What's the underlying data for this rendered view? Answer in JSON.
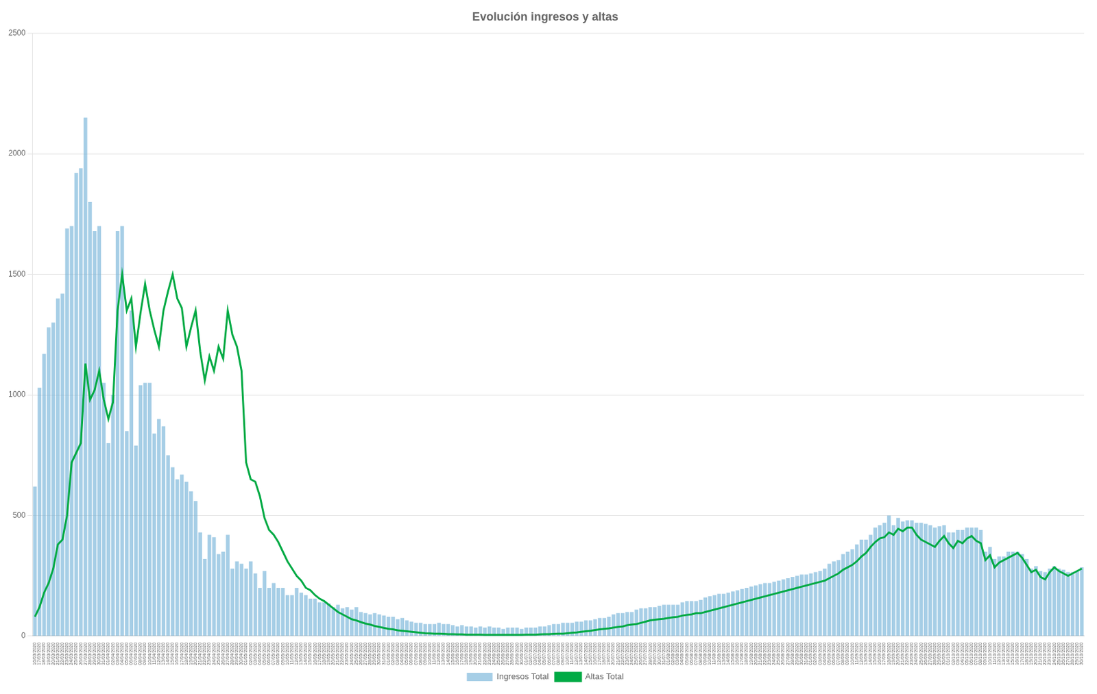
{
  "chart_data": {
    "type": "bar",
    "title": "Evolución ingresos y altas",
    "categories": [
      "16/03/2020",
      "17/03/2020",
      "18/03/2020",
      "19/03/2020",
      "20/03/2020",
      "21/03/2020",
      "22/03/2020",
      "23/03/2020",
      "24/03/2020",
      "25/03/2020",
      "26/03/2020",
      "27/03/2020",
      "28/03/2020",
      "29/03/2020",
      "30/03/2020",
      "31/03/2020",
      "01/04/2020",
      "02/04/2020",
      "03/04/2020",
      "04/04/2020",
      "05/04/2020",
      "06/04/2020",
      "07/04/2020",
      "08/04/2020",
      "09/04/2020",
      "10/04/2020",
      "11/04/2020",
      "12/04/2020",
      "13/04/2020",
      "14/04/2020",
      "15/04/2020",
      "16/04/2020",
      "17/04/2020",
      "18/04/2020",
      "19/04/2020",
      "20/04/2020",
      "21/04/2020",
      "22/04/2020",
      "23/04/2020",
      "24/04/2020",
      "25/04/2020",
      "26/04/2020",
      "27/04/2020",
      "28/04/2020",
      "29/04/2020",
      "30/04/2020",
      "01/05/2020",
      "02/05/2020",
      "03/05/2020",
      "04/05/2020",
      "05/05/2020",
      "06/05/2020",
      "07/05/2020",
      "08/05/2020",
      "09/05/2020",
      "10/05/2020",
      "11/05/2020",
      "12/05/2020",
      "13/05/2020",
      "14/05/2020",
      "15/05/2020",
      "16/05/2020",
      "17/05/2020",
      "18/05/2020",
      "19/05/2020",
      "20/05/2020",
      "21/05/2020",
      "22/05/2020",
      "23/05/2020",
      "24/05/2020",
      "25/05/2020",
      "26/05/2020",
      "27/05/2020",
      "28/05/2020",
      "29/05/2020",
      "30/05/2020",
      "31/05/2020",
      "01/06/2020",
      "02/06/2020",
      "03/06/2020",
      "04/06/2020",
      "05/06/2020",
      "06/06/2020",
      "07/06/2020",
      "08/06/2020",
      "09/06/2020",
      "10/06/2020",
      "11/06/2020",
      "12/06/2020",
      "13/06/2020",
      "14/06/2020",
      "15/06/2020",
      "16/06/2020",
      "17/06/2020",
      "18/06/2020",
      "19/06/2020",
      "20/06/2020",
      "21/06/2020",
      "22/06/2020",
      "23/06/2020",
      "24/06/2020",
      "25/06/2020",
      "26/06/2020",
      "27/06/2020",
      "28/06/2020",
      "29/06/2020",
      "30/06/2020",
      "01/07/2020",
      "02/07/2020",
      "03/07/2020",
      "04/07/2020",
      "05/07/2020",
      "06/07/2020",
      "07/07/2020",
      "08/07/2020",
      "09/07/2020",
      "10/07/2020",
      "11/07/2020",
      "12/07/2020",
      "13/07/2020",
      "14/07/2020",
      "15/07/2020",
      "16/07/2020",
      "17/07/2020",
      "18/07/2020",
      "19/07/2020",
      "20/07/2020",
      "21/07/2020",
      "22/07/2020",
      "23/07/2020",
      "24/07/2020",
      "25/07/2020",
      "26/07/2020",
      "27/07/2020",
      "28/07/2020",
      "29/07/2020",
      "30/07/2020",
      "31/07/2020",
      "01/08/2020",
      "02/08/2020",
      "03/08/2020",
      "04/08/2020",
      "05/08/2020",
      "06/08/2020",
      "07/08/2020",
      "08/08/2020",
      "09/08/2020",
      "10/08/2020",
      "11/08/2020",
      "12/08/2020",
      "13/08/2020",
      "14/08/2020",
      "15/08/2020",
      "16/08/2020",
      "17/08/2020",
      "18/08/2020",
      "19/08/2020",
      "20/08/2020",
      "21/08/2020",
      "22/08/2020",
      "23/08/2020",
      "24/08/2020",
      "25/08/2020",
      "26/08/2020",
      "27/08/2020",
      "28/08/2020",
      "29/08/2020",
      "30/08/2020",
      "31/08/2020",
      "01/09/2020",
      "02/09/2020",
      "03/09/2020",
      "04/09/2020",
      "05/09/2020",
      "06/09/2020",
      "07/09/2020",
      "08/09/2020",
      "09/09/2020",
      "10/09/2020",
      "11/09/2020",
      "12/09/2020",
      "13/09/2020",
      "14/09/2020",
      "15/09/2020",
      "16/09/2020",
      "17/09/2020",
      "18/09/2020",
      "19/09/2020",
      "20/09/2020",
      "21/09/2020",
      "22/09/2020",
      "23/09/2020",
      "24/09/2020",
      "25/09/2020",
      "26/09/2020",
      "27/09/2020",
      "28/09/2020",
      "29/09/2020",
      "30/09/2020",
      "01/10/2020",
      "02/10/2020",
      "03/10/2020",
      "04/10/2020",
      "05/10/2020",
      "06/10/2020",
      "07/10/2020",
      "08/10/2020",
      "09/10/2020",
      "10/10/2020",
      "11/10/2020",
      "12/10/2020",
      "13/10/2020",
      "14/10/2020",
      "15/10/2020",
      "16/10/2020",
      "17/10/2020",
      "18/10/2020",
      "19/10/2020",
      "20/10/2020",
      "21/10/2020",
      "22/10/2020",
      "23/10/2020",
      "24/10/2020",
      "25/10/2020",
      "26/10/2020",
      "27/10/2020",
      "28/10/2020",
      "29/10/2020",
      "30/10/2020"
    ],
    "series": [
      {
        "name": "Ingresos Total",
        "type": "bar",
        "color": "#6baed6",
        "values": [
          620,
          1030,
          1170,
          1280,
          1300,
          1400,
          1420,
          1690,
          1700,
          1920,
          1940,
          2150,
          1800,
          1680,
          1700,
          1050,
          800,
          1000,
          1680,
          1700,
          850,
          1350,
          790,
          1040,
          1050,
          1050,
          840,
          900,
          870,
          750,
          700,
          650,
          670,
          640,
          600,
          560,
          430,
          320,
          420,
          410,
          340,
          350,
          420,
          280,
          310,
          300,
          280,
          310,
          260,
          200,
          270,
          200,
          220,
          200,
          200,
          170,
          170,
          200,
          180,
          170,
          155,
          155,
          140,
          140,
          135,
          120,
          130,
          115,
          120,
          110,
          120,
          100,
          95,
          90,
          95,
          90,
          85,
          80,
          80,
          70,
          75,
          65,
          60,
          55,
          55,
          50,
          50,
          50,
          55,
          50,
          50,
          45,
          40,
          45,
          40,
          40,
          35,
          40,
          35,
          40,
          35,
          35,
          30,
          35,
          35,
          35,
          30,
          35,
          35,
          35,
          40,
          40,
          45,
          50,
          50,
          55,
          55,
          55,
          60,
          60,
          65,
          65,
          70,
          75,
          75,
          80,
          90,
          95,
          95,
          100,
          100,
          110,
          115,
          115,
          120,
          120,
          125,
          130,
          130,
          130,
          130,
          140,
          145,
          145,
          145,
          150,
          160,
          165,
          170,
          175,
          175,
          180,
          185,
          190,
          195,
          200,
          205,
          210,
          215,
          220,
          220,
          225,
          230,
          235,
          240,
          245,
          250,
          255,
          255,
          260,
          265,
          270,
          280,
          300,
          310,
          315,
          340,
          350,
          360,
          380,
          400,
          400,
          420,
          450,
          460,
          470,
          500,
          460,
          490,
          475,
          480,
          480,
          470,
          470,
          465,
          460,
          450,
          455,
          460,
          430,
          430,
          440,
          440,
          450,
          450,
          450,
          440,
          350,
          370,
          320,
          330,
          330,
          350,
          350,
          350,
          340,
          320,
          280,
          290,
          270,
          265,
          280,
          290,
          280,
          275,
          265,
          265,
          270,
          285
        ]
      },
      {
        "name": "Altas Total",
        "type": "line",
        "color": "#00aa44",
        "values": [
          80,
          120,
          180,
          220,
          280,
          380,
          400,
          500,
          720,
          760,
          800,
          1130,
          980,
          1020,
          1100,
          980,
          900,
          970,
          1350,
          1500,
          1350,
          1400,
          1200,
          1340,
          1460,
          1350,
          1270,
          1200,
          1350,
          1430,
          1500,
          1400,
          1360,
          1200,
          1280,
          1350,
          1180,
          1060,
          1160,
          1100,
          1200,
          1150,
          1350,
          1250,
          1200,
          1100,
          720,
          650,
          640,
          580,
          490,
          440,
          420,
          390,
          350,
          310,
          280,
          250,
          230,
          200,
          190,
          170,
          155,
          145,
          130,
          115,
          100,
          90,
          80,
          70,
          65,
          58,
          52,
          48,
          42,
          38,
          34,
          30,
          28,
          24,
          22,
          20,
          18,
          16,
          14,
          12,
          11,
          10,
          10,
          9,
          8,
          8,
          7,
          7,
          6,
          6,
          6,
          6,
          5,
          5,
          5,
          5,
          5,
          5,
          5,
          5,
          5,
          6,
          6,
          6,
          7,
          8,
          8,
          9,
          10,
          10,
          12,
          14,
          15,
          18,
          20,
          22,
          25,
          28,
          30,
          32,
          35,
          38,
          40,
          45,
          48,
          50,
          55,
          60,
          65,
          68,
          70,
          72,
          75,
          78,
          80,
          85,
          88,
          90,
          95,
          95,
          100,
          105,
          110,
          115,
          120,
          125,
          130,
          135,
          140,
          145,
          150,
          155,
          160,
          165,
          170,
          175,
          180,
          185,
          190,
          195,
          200,
          205,
          210,
          215,
          220,
          225,
          230,
          240,
          250,
          260,
          275,
          285,
          295,
          310,
          330,
          345,
          370,
          390,
          405,
          410,
          430,
          420,
          445,
          435,
          450,
          450,
          420,
          400,
          390,
          380,
          370,
          395,
          415,
          385,
          365,
          395,
          385,
          405,
          415,
          395,
          385,
          315,
          335,
          285,
          305,
          315,
          325,
          335,
          345,
          325,
          295,
          265,
          275,
          245,
          235,
          265,
          285,
          270,
          260,
          250,
          260,
          270,
          280
        ]
      }
    ],
    "ylim": [
      0,
      2500
    ],
    "yticks": [
      0,
      500,
      1000,
      1500,
      2000,
      2500
    ],
    "grid": "y",
    "legend": "bottom"
  }
}
